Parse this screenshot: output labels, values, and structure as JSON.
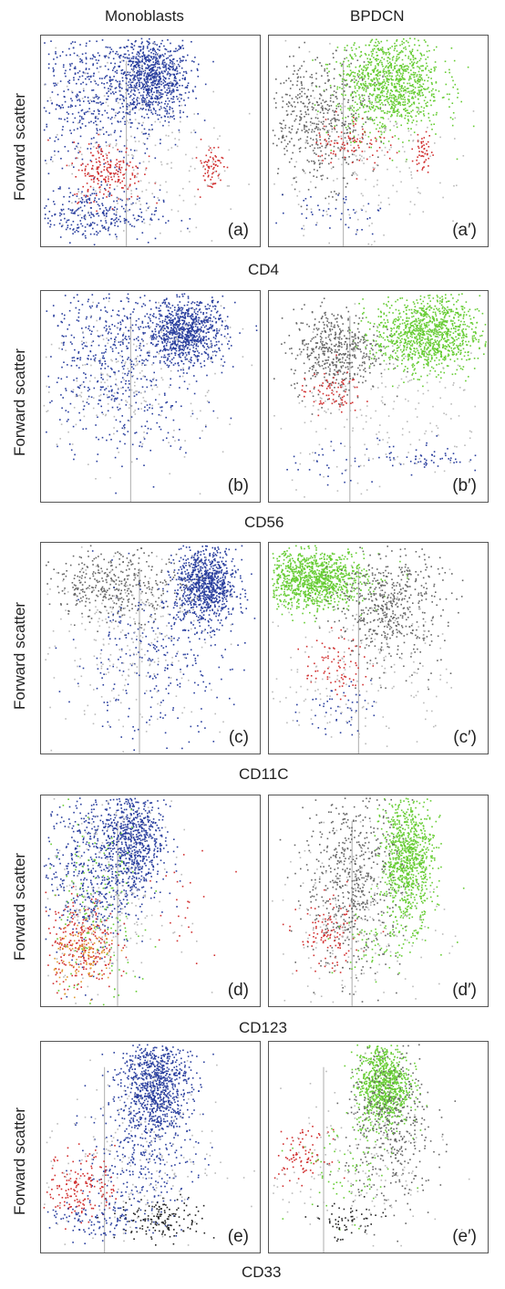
{
  "columns": [
    "Monoblasts",
    "BPDCN"
  ],
  "y_axis_label": "Forward scatter",
  "colors": {
    "blue": "#2a3f9e",
    "green": "#66cc33",
    "grey": "#666666",
    "red": "#d13030",
    "light": "#bbbbbb",
    "black": "#222222",
    "orange": "#e09a30",
    "gate": "#bbbbbb"
  },
  "chart_data": [
    {
      "type": "scatter",
      "panel_label": "(a)",
      "xlabel": "CD4",
      "ylabel": "Forward scatter",
      "grid": false,
      "gate_x": 0.39,
      "clusters": [
        {
          "color": "blue",
          "x": 0.5,
          "y": 0.8,
          "sx": 0.09,
          "sy": 0.1,
          "n": 900
        },
        {
          "color": "blue",
          "x": 0.22,
          "y": 0.7,
          "sx": 0.15,
          "sy": 0.2,
          "n": 500
        },
        {
          "color": "blue",
          "x": 0.22,
          "y": 0.15,
          "sx": 0.16,
          "sy": 0.06,
          "n": 300
        },
        {
          "color": "red",
          "x": 0.3,
          "y": 0.36,
          "sx": 0.08,
          "sy": 0.07,
          "n": 200
        },
        {
          "color": "red",
          "x": 0.77,
          "y": 0.38,
          "sx": 0.03,
          "sy": 0.06,
          "n": 70
        },
        {
          "color": "light",
          "x": 0.4,
          "y": 0.45,
          "sx": 0.22,
          "sy": 0.25,
          "n": 250
        }
      ]
    },
    {
      "type": "scatter",
      "panel_label": "(a′)",
      "xlabel": "CD4",
      "ylabel": "Forward scatter",
      "grid": false,
      "gate_x": 0.34,
      "clusters": [
        {
          "color": "green",
          "x": 0.55,
          "y": 0.78,
          "sx": 0.12,
          "sy": 0.12,
          "n": 1100
        },
        {
          "color": "grey",
          "x": 0.22,
          "y": 0.6,
          "sx": 0.12,
          "sy": 0.15,
          "n": 500
        },
        {
          "color": "red",
          "x": 0.38,
          "y": 0.5,
          "sx": 0.09,
          "sy": 0.06,
          "n": 90
        },
        {
          "color": "red",
          "x": 0.7,
          "y": 0.45,
          "sx": 0.02,
          "sy": 0.05,
          "n": 50
        },
        {
          "color": "blue",
          "x": 0.28,
          "y": 0.17,
          "sx": 0.12,
          "sy": 0.05,
          "n": 45
        },
        {
          "color": "light",
          "x": 0.4,
          "y": 0.35,
          "sx": 0.22,
          "sy": 0.22,
          "n": 180
        }
      ]
    },
    {
      "type": "scatter",
      "panel_label": "(b)",
      "xlabel": "CD56",
      "ylabel": "Forward scatter",
      "grid": false,
      "gate_x": 0.41,
      "clusters": [
        {
          "color": "blue",
          "x": 0.66,
          "y": 0.81,
          "sx": 0.09,
          "sy": 0.08,
          "n": 900
        },
        {
          "color": "blue",
          "x": 0.3,
          "y": 0.75,
          "sx": 0.15,
          "sy": 0.15,
          "n": 400
        },
        {
          "color": "blue",
          "x": 0.4,
          "y": 0.4,
          "sx": 0.18,
          "sy": 0.13,
          "n": 150
        },
        {
          "color": "light",
          "x": 0.4,
          "y": 0.6,
          "sx": 0.22,
          "sy": 0.2,
          "n": 250
        }
      ]
    },
    {
      "type": "scatter",
      "panel_label": "(b′)",
      "xlabel": "CD56",
      "ylabel": "Forward scatter",
      "grid": false,
      "gate_x": 0.37,
      "clusters": [
        {
          "color": "green",
          "x": 0.72,
          "y": 0.8,
          "sx": 0.12,
          "sy": 0.09,
          "n": 1100
        },
        {
          "color": "grey",
          "x": 0.3,
          "y": 0.72,
          "sx": 0.1,
          "sy": 0.1,
          "n": 500
        },
        {
          "color": "red",
          "x": 0.28,
          "y": 0.52,
          "sx": 0.07,
          "sy": 0.05,
          "n": 80
        },
        {
          "color": "blue",
          "x": 0.7,
          "y": 0.22,
          "sx": 0.1,
          "sy": 0.04,
          "n": 60
        },
        {
          "color": "blue",
          "x": 0.3,
          "y": 0.18,
          "sx": 0.1,
          "sy": 0.05,
          "n": 30
        },
        {
          "color": "light",
          "x": 0.5,
          "y": 0.45,
          "sx": 0.25,
          "sy": 0.2,
          "n": 200
        }
      ]
    },
    {
      "type": "scatter",
      "panel_label": "(c)",
      "xlabel": "CD11C",
      "ylabel": "Forward scatter",
      "grid": false,
      "gate_x": 0.45,
      "clusters": [
        {
          "color": "blue",
          "x": 0.75,
          "y": 0.8,
          "sx": 0.07,
          "sy": 0.09,
          "n": 900
        },
        {
          "color": "grey",
          "x": 0.35,
          "y": 0.8,
          "sx": 0.15,
          "sy": 0.08,
          "n": 400
        },
        {
          "color": "blue",
          "x": 0.5,
          "y": 0.45,
          "sx": 0.18,
          "sy": 0.18,
          "n": 280
        },
        {
          "color": "light",
          "x": 0.4,
          "y": 0.55,
          "sx": 0.22,
          "sy": 0.22,
          "n": 250
        }
      ]
    },
    {
      "type": "scatter",
      "panel_label": "(c′)",
      "xlabel": "CD11C",
      "ylabel": "Forward scatter",
      "grid": false,
      "gate_x": 0.41,
      "clusters": [
        {
          "color": "green",
          "x": 0.2,
          "y": 0.83,
          "sx": 0.12,
          "sy": 0.07,
          "n": 1100
        },
        {
          "color": "grey",
          "x": 0.55,
          "y": 0.7,
          "sx": 0.12,
          "sy": 0.14,
          "n": 550
        },
        {
          "color": "red",
          "x": 0.3,
          "y": 0.42,
          "sx": 0.07,
          "sy": 0.07,
          "n": 80
        },
        {
          "color": "blue",
          "x": 0.3,
          "y": 0.22,
          "sx": 0.08,
          "sy": 0.06,
          "n": 50
        },
        {
          "color": "light",
          "x": 0.4,
          "y": 0.4,
          "sx": 0.22,
          "sy": 0.2,
          "n": 180
        }
      ]
    },
    {
      "type": "scatter",
      "panel_label": "(d)",
      "xlabel": "CD123",
      "ylabel": "Forward scatter",
      "grid": false,
      "gate_x": 0.35,
      "clusters": [
        {
          "color": "blue",
          "x": 0.42,
          "y": 0.8,
          "sx": 0.07,
          "sy": 0.15,
          "n": 800
        },
        {
          "color": "blue",
          "x": 0.22,
          "y": 0.65,
          "sx": 0.1,
          "sy": 0.2,
          "n": 500
        },
        {
          "color": "red",
          "x": 0.18,
          "y": 0.3,
          "sx": 0.08,
          "sy": 0.11,
          "n": 250
        },
        {
          "color": "orange",
          "x": 0.2,
          "y": 0.25,
          "sx": 0.07,
          "sy": 0.08,
          "n": 120
        },
        {
          "color": "green",
          "x": 0.25,
          "y": 0.45,
          "sx": 0.12,
          "sy": 0.25,
          "n": 150
        },
        {
          "color": "red",
          "x": 0.65,
          "y": 0.55,
          "sx": 0.08,
          "sy": 0.15,
          "n": 25
        },
        {
          "color": "light",
          "x": 0.3,
          "y": 0.5,
          "sx": 0.15,
          "sy": 0.25,
          "n": 200
        }
      ]
    },
    {
      "type": "scatter",
      "panel_label": "(d′)",
      "xlabel": "CD123",
      "ylabel": "Forward scatter",
      "grid": false,
      "gate_x": 0.38,
      "clusters": [
        {
          "color": "green",
          "x": 0.63,
          "y": 0.7,
          "sx": 0.06,
          "sy": 0.15,
          "n": 900
        },
        {
          "color": "grey",
          "x": 0.38,
          "y": 0.6,
          "sx": 0.11,
          "sy": 0.22,
          "n": 600
        },
        {
          "color": "red",
          "x": 0.27,
          "y": 0.33,
          "sx": 0.07,
          "sy": 0.08,
          "n": 110
        },
        {
          "color": "green",
          "x": 0.5,
          "y": 0.3,
          "sx": 0.1,
          "sy": 0.08,
          "n": 70
        },
        {
          "color": "light",
          "x": 0.4,
          "y": 0.4,
          "sx": 0.2,
          "sy": 0.2,
          "n": 180
        }
      ]
    },
    {
      "type": "scatter",
      "panel_label": "(e)",
      "xlabel": "CD33",
      "ylabel": "Forward scatter",
      "grid": false,
      "gate_x": 0.29,
      "clusters": [
        {
          "color": "blue",
          "x": 0.52,
          "y": 0.8,
          "sx": 0.08,
          "sy": 0.12,
          "n": 900
        },
        {
          "color": "blue",
          "x": 0.45,
          "y": 0.45,
          "sx": 0.12,
          "sy": 0.15,
          "n": 300
        },
        {
          "color": "red",
          "x": 0.18,
          "y": 0.32,
          "sx": 0.08,
          "sy": 0.08,
          "n": 170
        },
        {
          "color": "black",
          "x": 0.55,
          "y": 0.16,
          "sx": 0.1,
          "sy": 0.05,
          "n": 150
        },
        {
          "color": "blue",
          "x": 0.25,
          "y": 0.15,
          "sx": 0.12,
          "sy": 0.05,
          "n": 120
        },
        {
          "color": "light",
          "x": 0.4,
          "y": 0.45,
          "sx": 0.2,
          "sy": 0.22,
          "n": 200
        }
      ]
    },
    {
      "type": "scatter",
      "panel_label": "(e′)",
      "xlabel": "CD33",
      "ylabel": "Forward scatter",
      "grid": false,
      "gate_x": 0.25,
      "clusters": [
        {
          "color": "green",
          "x": 0.52,
          "y": 0.8,
          "sx": 0.06,
          "sy": 0.1,
          "n": 900
        },
        {
          "color": "grey",
          "x": 0.55,
          "y": 0.6,
          "sx": 0.1,
          "sy": 0.2,
          "n": 450
        },
        {
          "color": "red",
          "x": 0.15,
          "y": 0.46,
          "sx": 0.06,
          "sy": 0.06,
          "n": 90
        },
        {
          "color": "green",
          "x": 0.35,
          "y": 0.4,
          "sx": 0.12,
          "sy": 0.12,
          "n": 80
        },
        {
          "color": "black",
          "x": 0.35,
          "y": 0.15,
          "sx": 0.08,
          "sy": 0.05,
          "n": 60
        },
        {
          "color": "light",
          "x": 0.4,
          "y": 0.4,
          "sx": 0.2,
          "sy": 0.2,
          "n": 150
        }
      ]
    }
  ]
}
